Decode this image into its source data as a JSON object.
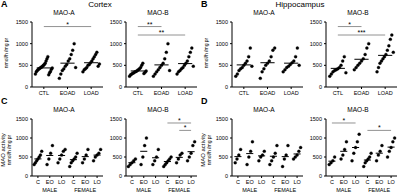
{
  "chart_data": [
    {
      "label": "A",
      "title": "Cortex",
      "y_unit": "nmol/h /mg pr",
      "charts": [
        {
          "type": "scatter",
          "title": "MAO-A",
          "categories": [
            "CTL",
            "EOAD",
            "LOAD"
          ],
          "color": "#000000",
          "marker": "circle",
          "ylim": [
            0,
            1500
          ],
          "yticks": [
            0,
            500,
            1000,
            1500
          ],
          "values": [
            [
              300,
              350,
              380,
              400,
              420,
              430,
              450,
              460,
              480,
              500,
              520,
              550,
              600,
              650,
              700,
              280,
              330,
              360,
              410,
              440
            ],
            [
              200,
              300,
              380,
              420,
              480,
              520,
              600,
              650,
              750,
              850,
              1000,
              450
            ],
            [
              350,
              400,
              420,
              450,
              500,
              520,
              560,
              600,
              650,
              700,
              750,
              800,
              480,
              530
            ]
          ],
          "means": [
            440,
            550,
            560
          ],
          "significance": [
            {
              "from": 0,
              "to": 2,
              "text": "*"
            }
          ]
        },
        {
          "type": "scatter",
          "title": "MAO-B",
          "categories": [
            "CTL",
            "EOAD",
            "LOAD"
          ],
          "color": "#000000",
          "marker": "circle",
          "ylim": [
            0,
            1500
          ],
          "yticks": [
            0,
            500,
            1000,
            1500
          ],
          "values": [
            [
              250,
              280,
              300,
              320,
              330,
              350,
              360,
              380,
              400,
              420,
              450,
              500,
              550,
              310,
              340,
              370
            ],
            [
              250,
              300,
              350,
              400,
              450,
              500,
              550,
              650,
              800,
              1000,
              380
            ],
            [
              300,
              350,
              380,
              420,
              450,
              500,
              550,
              600,
              700,
              800,
              900,
              480
            ]
          ],
          "means": [
            370,
            510,
            540
          ],
          "significance": [
            {
              "from": 0,
              "to": 1,
              "text": "**"
            },
            {
              "from": 0,
              "to": 2,
              "text": "**"
            }
          ]
        }
      ]
    },
    {
      "label": "B",
      "title": "Hippocampus",
      "y_unit": "nmol/h /mg pr",
      "charts": [
        {
          "type": "scatter",
          "title": "MAO-A",
          "categories": [
            "CTL",
            "EOAD",
            "LOAD"
          ],
          "color": "#000000",
          "marker": "circle",
          "ylim": [
            0,
            1500
          ],
          "yticks": [
            0,
            500,
            1000,
            1500
          ],
          "values": [
            [
              250,
              300,
              380,
              420,
              450,
              500,
              550,
              600,
              700,
              900,
              480
            ],
            [
              200,
              350,
              420,
              500,
              550,
              600,
              700,
              850,
              900
            ],
            [
              350,
              400,
              450,
              480,
              520,
              560,
              600,
              700,
              900,
              500
            ]
          ],
          "means": [
            510,
            560,
            550
          ],
          "significance": []
        },
        {
          "type": "scatter",
          "title": "MAO-B",
          "categories": [
            "CTL",
            "EOAD",
            "LOAD"
          ],
          "color": "#000000",
          "marker": "circle",
          "ylim": [
            0,
            1500
          ],
          "yticks": [
            0,
            500,
            1000,
            1500
          ],
          "values": [
            [
              250,
              300,
              350,
              380,
              400,
              420,
              450,
              500,
              600,
              700,
              330
            ],
            [
              400,
              450,
              500,
              550,
              600,
              650,
              750,
              900,
              1000
            ],
            [
              350,
              450,
              550,
              600,
              650,
              700,
              750,
              850,
              950,
              1100,
              1200,
              800
            ]
          ],
          "means": [
            430,
            640,
            730
          ],
          "significance": [
            {
              "from": 0,
              "to": 1,
              "text": "*"
            },
            {
              "from": 0,
              "to": 2,
              "text": "***"
            }
          ]
        }
      ]
    },
    {
      "label": "C",
      "y_label": "MAO activity",
      "y_unit": "nmol/h /mg pr",
      "charts": [
        {
          "type": "scatter",
          "title": "MAO-A",
          "categories": [
            "C",
            "EO",
            "LO",
            "C",
            "EO",
            "LO"
          ],
          "groups": [
            {
              "label": "MALE",
              "from": 0,
              "to": 2
            },
            {
              "label": "FEMALE",
              "from": 3,
              "to": 5
            }
          ],
          "color": "#000000",
          "marker": "circle",
          "ylim": [
            0,
            1500
          ],
          "yticks": [
            0,
            500,
            1000,
            1500
          ],
          "values": [
            [
              300,
              350,
              400,
              450,
              500,
              550,
              650
            ],
            [
              300,
              450,
              600,
              800
            ],
            [
              350,
              450,
              550,
              650,
              700
            ],
            [
              250,
              350,
              400,
              450,
              500,
              600
            ],
            [
              350,
              450,
              550,
              700
            ],
            [
              400,
              500,
              550,
              600,
              700
            ]
          ],
          "means": [
            450,
            540,
            540,
            430,
            510,
            550
          ],
          "significance": []
        },
        {
          "type": "scatter",
          "title": "MAO-B",
          "categories": [
            "C",
            "EO",
            "LO",
            "C",
            "EO",
            "LO"
          ],
          "groups": [
            {
              "label": "MALE",
              "from": 0,
              "to": 2
            },
            {
              "label": "FEMALE",
              "from": 3,
              "to": 5
            }
          ],
          "color": "#000000",
          "marker": "circle",
          "ylim": [
            0,
            1500
          ],
          "yticks": [
            0,
            500,
            1000,
            1500
          ],
          "values": [
            [
              250,
              300,
              350,
              400,
              450
            ],
            [
              300,
              500,
              800,
              1000
            ],
            [
              300,
              400,
              500,
              700
            ],
            [
              250,
              300,
              350,
              400,
              450,
              500
            ],
            [
              350,
              450,
              550,
              600
            ],
            [
              400,
              500,
              600,
              800,
              900
            ]
          ],
          "means": [
            350,
            650,
            480,
            380,
            490,
            640
          ],
          "significance": [
            {
              "from": 3,
              "to": 5,
              "text": "*"
            },
            {
              "from": 4,
              "to": 5,
              "text": "*"
            }
          ]
        }
      ]
    },
    {
      "label": "D",
      "y_label": "MAO activity",
      "y_unit": "nmol/h /mg pr",
      "charts": [
        {
          "type": "scatter",
          "title": "MAO-A",
          "categories": [
            "C",
            "EO",
            "LO",
            "C",
            "EO",
            "LO"
          ],
          "groups": [
            {
              "label": "MALE",
              "from": 0,
              "to": 2
            },
            {
              "label": "FEMALE",
              "from": 3,
              "to": 5
            }
          ],
          "color": "#000000",
          "marker": "circle",
          "ylim": [
            0,
            1500
          ],
          "yticks": [
            0,
            500,
            1000,
            1500
          ],
          "values": [
            [
              350,
              450,
              550,
              700
            ],
            [
              300,
              500,
              650,
              900
            ],
            [
              400,
              500,
              550,
              650
            ],
            [
              300,
              400,
              500,
              600,
              800
            ],
            [
              250,
              450,
              550,
              800
            ],
            [
              450,
              500,
              550,
              650,
              750
            ]
          ],
          "means": [
            510,
            590,
            530,
            520,
            510,
            580
          ],
          "significance": []
        },
        {
          "type": "scatter",
          "title": "MAO-B",
          "categories": [
            "C",
            "EO",
            "LO",
            "C",
            "EO",
            "LO"
          ],
          "groups": [
            {
              "label": "MALE",
              "from": 0,
              "to": 2
            },
            {
              "label": "FEMALE",
              "from": 3,
              "to": 5
            }
          ],
          "color": "#000000",
          "marker": "circle",
          "ylim": [
            0,
            1500
          ],
          "yticks": [
            0,
            500,
            1000,
            1500
          ],
          "values": [
            [
              300,
              350,
              400,
              500
            ],
            [
              450,
              550,
              700,
              900
            ],
            [
              400,
              600,
              750,
              900,
              1100
            ],
            [
              250,
              350,
              400,
              450,
              500,
              600
            ],
            [
              400,
              550,
              650,
              800
            ],
            [
              500,
              650,
              750,
              900,
              1000
            ]
          ],
          "means": [
            390,
            650,
            750,
            420,
            600,
            760
          ],
          "significance": [
            {
              "from": 0,
              "to": 2,
              "text": "*"
            },
            {
              "from": 3,
              "to": 5,
              "text": "*"
            }
          ]
        }
      ]
    }
  ]
}
